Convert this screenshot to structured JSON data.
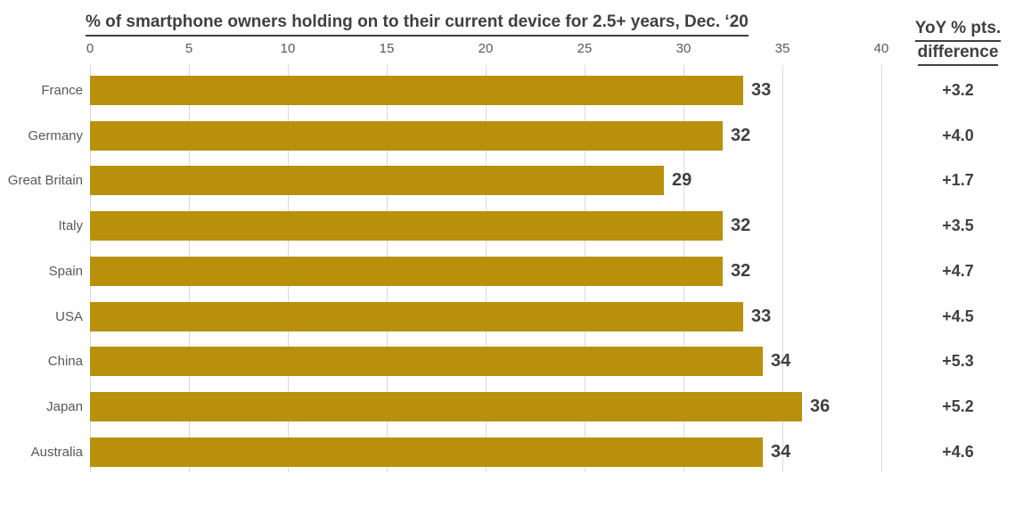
{
  "title": "% of smartphone owners holding on to their current device for 2.5+ years, Dec. ‘20",
  "yoy_header": {
    "line1": "YoY % pts.",
    "line2": "difference"
  },
  "colors": {
    "bar": "#B8900B",
    "gridline": "#D9D9D9",
    "title_text": "#404040",
    "axis_text": "#595959",
    "value_text": "#3F3F3F",
    "background": "#FFFFFF"
  },
  "chart_data": {
    "type": "bar",
    "orientation": "horizontal",
    "title": "% of smartphone owners holding on to their current device for 2.5+ years, Dec. ‘20",
    "categories": [
      "France",
      "Germany",
      "Great Britain",
      "Italy",
      "Spain",
      "USA",
      "China",
      "Japan",
      "Australia"
    ],
    "values": [
      33,
      32,
      29,
      32,
      32,
      33,
      34,
      36,
      34
    ],
    "value_labels": [
      "33",
      "32",
      "29",
      "32",
      "32",
      "33",
      "34",
      "36",
      "34"
    ],
    "yoy_diff_labels": [
      "+3.2",
      "+4.0",
      "+1.7",
      "+3.5",
      "+4.7",
      "+4.5",
      "+5.3",
      "+5.2",
      "+4.6"
    ],
    "yoy_column_header": "YoY % pts. difference",
    "x_ticks": [
      0,
      5,
      10,
      15,
      20,
      25,
      30,
      35,
      40
    ],
    "xlim": [
      0,
      40
    ],
    "grid": true,
    "legend": false,
    "data_labels_shown": true
  }
}
